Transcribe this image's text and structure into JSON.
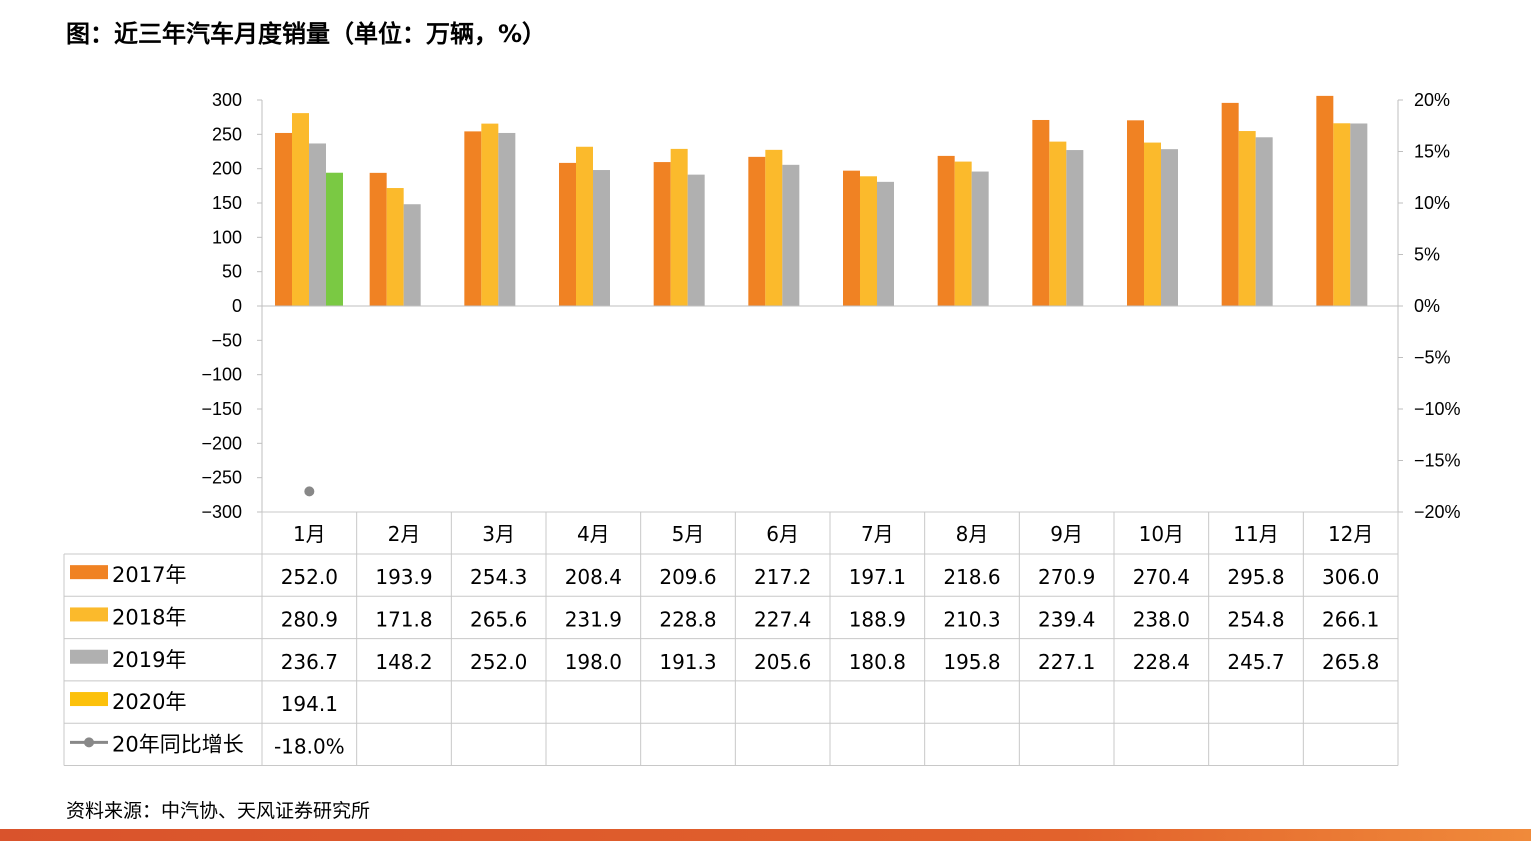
{
  "title": "图：近三年汽车月度销量（单位：万辆，%）",
  "source": "资料来源：中汽协、天风证券研究所",
  "chart_data": {
    "type": "bar",
    "categories": [
      "1月",
      "2月",
      "3月",
      "4月",
      "5月",
      "6月",
      "7月",
      "8月",
      "9月",
      "10月",
      "11月",
      "12月"
    ],
    "series": [
      {
        "name": "2017年",
        "color": "#f08223",
        "values": [
          252.0,
          193.9,
          254.3,
          208.4,
          209.6,
          217.2,
          197.1,
          218.6,
          270.9,
          270.4,
          295.8,
          306.0
        ],
        "labels": [
          "252.0",
          "193.9",
          "254.3",
          "208.4",
          "209.6",
          "217.2",
          "197.1",
          "218.6",
          "270.9",
          "270.4",
          "295.8",
          "306.0"
        ]
      },
      {
        "name": "2018年",
        "color": "#fbba2c",
        "values": [
          280.9,
          171.8,
          265.6,
          231.9,
          228.8,
          227.4,
          188.9,
          210.3,
          239.4,
          238.0,
          254.8,
          266.1
        ],
        "labels": [
          "280.9",
          "171.8",
          "265.6",
          "231.9",
          "228.8",
          "227.4",
          "188.9",
          "210.3",
          "239.4",
          "238.0",
          "254.8",
          "266.1"
        ]
      },
      {
        "name": "2019年",
        "color": "#b0b0b0",
        "values": [
          236.7,
          148.2,
          252.0,
          198.0,
          191.3,
          205.6,
          180.8,
          195.8,
          227.1,
          228.4,
          245.7,
          265.8
        ],
        "labels": [
          "236.7",
          "148.2",
          "252.0",
          "198.0",
          "191.3",
          "205.6",
          "180.8",
          "195.8",
          "227.1",
          "228.4",
          "245.7",
          "265.8"
        ]
      },
      {
        "name": "2020年",
        "color": "#7ac943",
        "legend_color": "#fcc10b",
        "values": [
          194.1,
          null,
          null,
          null,
          null,
          null,
          null,
          null,
          null,
          null,
          null,
          null
        ],
        "labels": [
          "194.1",
          "",
          "",
          "",
          "",
          "",
          "",
          "",
          "",
          "",
          "",
          ""
        ]
      },
      {
        "name": "20年同比增长",
        "type": "line",
        "axis": "right",
        "color": "#888888",
        "values": [
          -18.0,
          null,
          null,
          null,
          null,
          null,
          null,
          null,
          null,
          null,
          null,
          null
        ],
        "labels": [
          "-18.0%",
          "",
          "",
          "",
          "",
          "",
          "",
          "",
          "",
          "",
          "",
          ""
        ]
      }
    ],
    "y_left": {
      "ticks": [
        "300",
        "250",
        "200",
        "150",
        "100",
        "50",
        "0",
        "−50",
        "−100",
        "−150",
        "−200",
        "−250",
        "−300"
      ],
      "ylim": [
        -300,
        300
      ]
    },
    "y_right": {
      "ticks": [
        "20%",
        "15%",
        "10%",
        "5%",
        "0%",
        "−5%",
        "−10%",
        "−15%",
        "−20%"
      ],
      "ylim": [
        -20,
        20
      ]
    },
    "table": true
  }
}
